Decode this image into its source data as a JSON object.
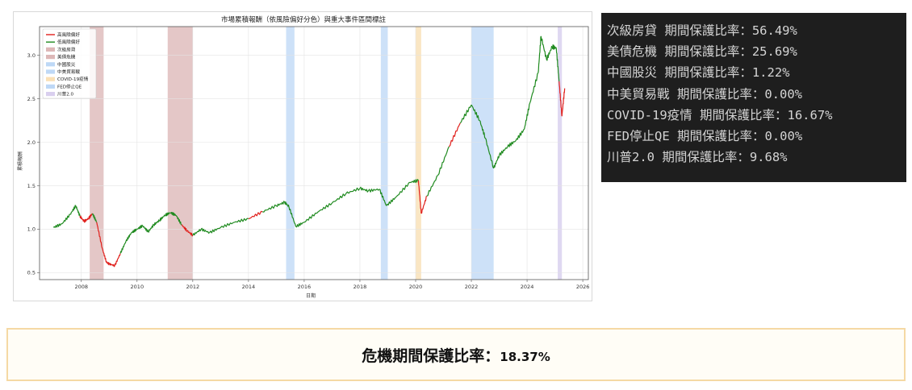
{
  "chart_data": {
    "type": "line",
    "title": "市場累積報酬（依風險偏好分色）與重大事件區間標註",
    "xlabel": "日期",
    "ylabel": "累積報酬",
    "xlim": [
      2006.5,
      2026.2
    ],
    "ylim": [
      0.42,
      3.33
    ],
    "grid": true,
    "legend_position": "top-left",
    "x_ticks": [
      2008,
      2010,
      2012,
      2014,
      2016,
      2018,
      2020,
      2022,
      2024,
      2026
    ],
    "y_ticks": [
      0.5,
      1.0,
      1.5,
      2.0,
      2.5,
      3.0
    ],
    "series": [
      {
        "name": "高風險偏好",
        "color": "#e0201c"
      },
      {
        "name": "低風險偏好",
        "color": "#1f8a1f"
      }
    ],
    "points": [
      [
        2007.0,
        1.02
      ],
      [
        2007.3,
        1.06
      ],
      [
        2007.6,
        1.17
      ],
      [
        2007.8,
        1.27
      ],
      [
        2007.95,
        1.15
      ],
      [
        2008.1,
        1.09
      ],
      [
        2008.25,
        1.12
      ],
      [
        2008.4,
        1.18
      ],
      [
        2008.55,
        1.08
      ],
      [
        2008.75,
        0.78
      ],
      [
        2008.9,
        0.62
      ],
      [
        2009.0,
        0.6
      ],
      [
        2009.2,
        0.58
      ],
      [
        2009.4,
        0.72
      ],
      [
        2009.6,
        0.86
      ],
      [
        2009.8,
        0.96
      ],
      [
        2010.0,
        1.0
      ],
      [
        2010.2,
        1.04
      ],
      [
        2010.4,
        0.97
      ],
      [
        2010.6,
        1.05
      ],
      [
        2010.8,
        1.1
      ],
      [
        2011.0,
        1.16
      ],
      [
        2011.2,
        1.19
      ],
      [
        2011.4,
        1.16
      ],
      [
        2011.6,
        1.05
      ],
      [
        2011.8,
        0.98
      ],
      [
        2012.0,
        0.93
      ],
      [
        2012.3,
        1.0
      ],
      [
        2012.6,
        0.96
      ],
      [
        2013.0,
        1.02
      ],
      [
        2013.5,
        1.08
      ],
      [
        2014.0,
        1.12
      ],
      [
        2014.5,
        1.2
      ],
      [
        2015.0,
        1.27
      ],
      [
        2015.3,
        1.31
      ],
      [
        2015.45,
        1.26
      ],
      [
        2015.7,
        1.03
      ],
      [
        2016.0,
        1.08
      ],
      [
        2016.5,
        1.2
      ],
      [
        2017.0,
        1.3
      ],
      [
        2017.5,
        1.41
      ],
      [
        2018.0,
        1.47
      ],
      [
        2018.3,
        1.44
      ],
      [
        2018.7,
        1.46
      ],
      [
        2018.95,
        1.27
      ],
      [
        2019.3,
        1.37
      ],
      [
        2019.8,
        1.54
      ],
      [
        2020.1,
        1.56
      ],
      [
        2020.2,
        1.18
      ],
      [
        2020.4,
        1.38
      ],
      [
        2020.8,
        1.62
      ],
      [
        2021.2,
        1.95
      ],
      [
        2021.6,
        2.22
      ],
      [
        2022.0,
        2.43
      ],
      [
        2022.3,
        2.25
      ],
      [
        2022.5,
        2.05
      ],
      [
        2022.8,
        1.7
      ],
      [
        2023.0,
        1.85
      ],
      [
        2023.3,
        1.95
      ],
      [
        2023.6,
        2.02
      ],
      [
        2023.9,
        2.15
      ],
      [
        2024.1,
        2.45
      ],
      [
        2024.4,
        2.8
      ],
      [
        2024.5,
        3.22
      ],
      [
        2024.7,
        2.95
      ],
      [
        2024.9,
        3.1
      ],
      [
        2025.05,
        3.08
      ],
      [
        2025.15,
        2.7
      ],
      [
        2025.25,
        2.3
      ],
      [
        2025.35,
        2.62
      ]
    ],
    "regimes": [
      {
        "from": 2007.95,
        "to": 2008.4,
        "series": "高風險偏好"
      },
      {
        "from": 2008.55,
        "to": 2009.4,
        "series": "高風險偏好"
      },
      {
        "from": 2011.6,
        "to": 2012.0,
        "series": "高風險偏好"
      },
      {
        "from": 2013.8,
        "to": 2014.5,
        "series": "高風險偏好"
      },
      {
        "from": 2015.6,
        "to": 2015.75,
        "series": "高風險偏好"
      },
      {
        "from": 2020.15,
        "to": 2020.35,
        "series": "高風險偏好"
      },
      {
        "from": 2021.3,
        "to": 2021.6,
        "series": "高風險偏好"
      },
      {
        "from": 2024.65,
        "to": 2024.75,
        "series": "高風險偏好"
      },
      {
        "from": 2025.15,
        "to": 2025.35,
        "series": "高風險偏好"
      }
    ],
    "events": [
      {
        "name": "次級房貸",
        "from": 2008.3,
        "to": 2008.8,
        "color": "#b35f5f",
        "opacity": 0.35
      },
      {
        "name": "美債危機",
        "from": 2011.1,
        "to": 2012.0,
        "color": "#b35f5f",
        "opacity": 0.35
      },
      {
        "name": "中國股災",
        "from": 2015.35,
        "to": 2015.65,
        "color": "#6fa8ea",
        "opacity": 0.35
      },
      {
        "name": "中美貿易戰",
        "from": 2018.75,
        "to": 2019.0,
        "color": "#6fa8ea",
        "opacity": 0.35
      },
      {
        "name": "COVID-19疫情",
        "from": 2020.0,
        "to": 2020.2,
        "color": "#f5c77a",
        "opacity": 0.45
      },
      {
        "name": "FED停止QE",
        "from": 2022.0,
        "to": 2022.8,
        "color": "#6fa8ea",
        "opacity": 0.35
      },
      {
        "name": "川普2.0",
        "from": 2025.1,
        "to": 2025.25,
        "color": "#b9a8e0",
        "opacity": 0.45
      }
    ]
  },
  "stats": [
    {
      "text": "次級房貸 期間保護比率：56.49%"
    },
    {
      "text": "美債危機 期間保護比率：25.69%"
    },
    {
      "text": "中國股災 期間保護比率：1.22%"
    },
    {
      "text": "中美貿易戰 期間保護比率：0.00%"
    },
    {
      "text": "COVID-19疫情 期間保護比率：16.67%"
    },
    {
      "text": "FED停止QE 期間保護比率：0.00%"
    },
    {
      "text": "川普2.0 期間保護比率：9.68%"
    }
  ],
  "summary": {
    "label": "危機期間保護比率：",
    "value": "18.37%"
  }
}
